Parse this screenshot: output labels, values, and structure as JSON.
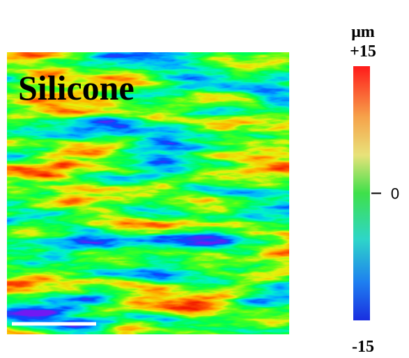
{
  "panel": {
    "label": "Silicone"
  },
  "colorbar": {
    "unit": "μm",
    "lim": [
      -15,
      15
    ],
    "ticks": [
      {
        "value": 15,
        "label": "+15"
      },
      0,
      -15
    ]
  }
}
